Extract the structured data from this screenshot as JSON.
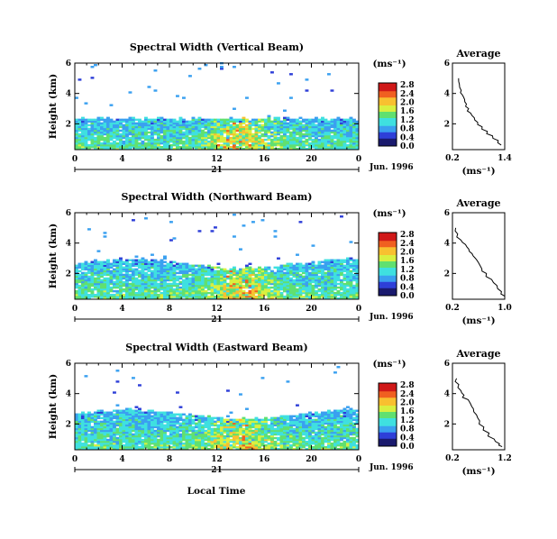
{
  "figure": {
    "xlabel": "Local Time",
    "date_label": "Jun. 1996",
    "day_label": "21",
    "height_label": "Height (km)",
    "unit_label": "(ms⁻¹)",
    "avg_unit_label": "(ms⁻¹)",
    "avg_title": "Average"
  },
  "chart_data": [
    {
      "type": "heatmap",
      "title": "Spectral Width (Vertical Beam)",
      "ylabel": "Height (km)",
      "xlabel": "Local Time",
      "xticks": [
        "0",
        "4",
        "8",
        "12",
        "16",
        "20",
        "0"
      ],
      "yticks": [
        "2",
        "4",
        "6"
      ],
      "xlim": [
        0,
        24
      ],
      "ylim": [
        0.3,
        6
      ],
      "colorbar": {
        "label": "(ms⁻¹)",
        "ticks": [
          "0.0",
          "0.4",
          "0.8",
          "1.2",
          "1.6",
          "2.0",
          "2.4",
          "2.8"
        ],
        "range": [
          0,
          2.8
        ]
      },
      "notes": "Dense echoes below ~2 km all day; peak widths near 12-16 LT around 1 km",
      "profile": {
        "type": "line",
        "title": "Average",
        "xlabel": "(ms⁻¹)",
        "xticks": [
          "0.2",
          "1.4"
        ],
        "yticks": [
          "2",
          "4",
          "6"
        ],
        "xlim": [
          0.2,
          1.4
        ],
        "ylim": [
          0.3,
          6
        ],
        "x": [
          0.34,
          0.36,
          0.4,
          0.43,
          0.48,
          0.52,
          0.57,
          0.62,
          0.7,
          0.78,
          0.88,
          1.0,
          1.12,
          1.25,
          1.32
        ],
        "y": [
          5.0,
          4.6,
          4.2,
          3.9,
          3.6,
          3.3,
          3.0,
          2.7,
          2.4,
          2.1,
          1.8,
          1.5,
          1.2,
          0.9,
          0.6
        ]
      }
    },
    {
      "type": "heatmap",
      "title": "Spectral Width (Northward Beam)",
      "ylabel": "Height (km)",
      "xlabel": "Local Time",
      "xticks": [
        "0",
        "4",
        "8",
        "12",
        "16",
        "20",
        "0"
      ],
      "yticks": [
        "2",
        "4",
        "6"
      ],
      "xlim": [
        0,
        24
      ],
      "ylim": [
        0.3,
        6
      ],
      "colorbar": {
        "label": "(ms⁻¹)",
        "ticks": [
          "0.0",
          "0.4",
          "0.8",
          "1.2",
          "1.6",
          "2.0",
          "2.4",
          "2.8"
        ],
        "range": [
          0,
          2.8
        ]
      },
      "notes": "Echo layer up to ~2.5 km; sparse echoes aloft",
      "profile": {
        "type": "line",
        "title": "Average",
        "xlabel": "(ms⁻¹)",
        "xticks": [
          "0.2",
          "1.0"
        ],
        "yticks": [
          "2",
          "4",
          "6"
        ],
        "xlim": [
          0.2,
          1.0
        ],
        "ylim": [
          0.3,
          6
        ],
        "x": [
          0.25,
          0.28,
          0.33,
          0.4,
          0.45,
          0.5,
          0.55,
          0.6,
          0.65,
          0.72,
          0.8,
          0.88,
          0.95,
          1.0
        ],
        "y": [
          5.0,
          4.6,
          4.2,
          3.9,
          3.6,
          3.3,
          3.0,
          2.7,
          2.3,
          2.0,
          1.6,
          1.2,
          0.8,
          0.5
        ]
      }
    },
    {
      "type": "heatmap",
      "title": "Spectral Width (Eastward Beam)",
      "ylabel": "Height (km)",
      "xlabel": "Local Time",
      "xticks": [
        "0",
        "4",
        "8",
        "12",
        "16",
        "20",
        "0"
      ],
      "yticks": [
        "2",
        "4",
        "6"
      ],
      "xlim": [
        0,
        24
      ],
      "ylim": [
        0.3,
        6
      ],
      "colorbar": {
        "label": "(ms⁻¹)",
        "ticks": [
          "0.0",
          "0.4",
          "0.8",
          "1.2",
          "1.6",
          "2.0",
          "2.4",
          "2.8"
        ],
        "range": [
          0,
          2.8
        ]
      },
      "notes": "Echo layer up to ~2.5 km; scattered echoes aloft",
      "profile": {
        "type": "line",
        "title": "Average",
        "xlabel": "(ms⁻¹)",
        "xticks": [
          "0.2",
          "1.2"
        ],
        "yticks": [
          "2",
          "4",
          "6"
        ],
        "xlim": [
          0.2,
          1.2
        ],
        "ylim": [
          0.3,
          6
        ],
        "x": [
          0.28,
          0.32,
          0.36,
          0.42,
          0.5,
          0.55,
          0.6,
          0.66,
          0.72,
          0.8,
          0.9,
          1.0,
          1.1,
          1.15
        ],
        "y": [
          5.0,
          4.6,
          4.2,
          3.9,
          3.6,
          3.3,
          3.0,
          2.6,
          2.2,
          1.8,
          1.4,
          1.0,
          0.7,
          0.5
        ]
      }
    }
  ],
  "colors": {
    "scale": [
      "#1a1a6e",
      "#2e3fd8",
      "#3aa0f0",
      "#3fe0e0",
      "#60e070",
      "#d8f040",
      "#f8c030",
      "#f06020",
      "#d01818"
    ]
  }
}
